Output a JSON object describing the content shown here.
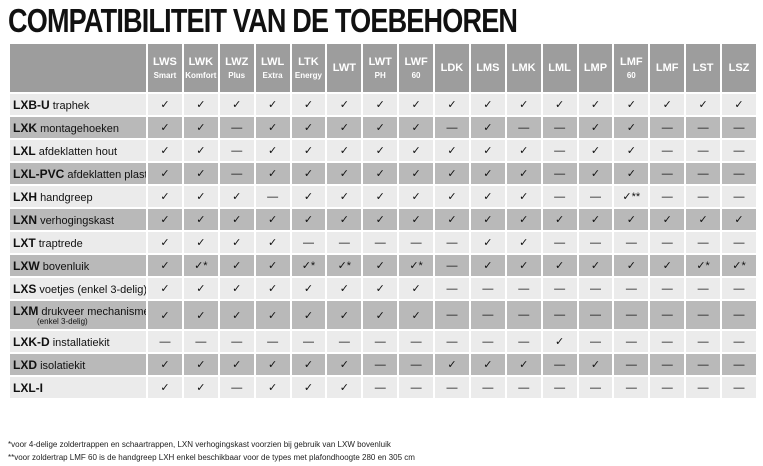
{
  "title": "COMPATIBILITEIT VAN DE TOEBEHOREN",
  "table": {
    "columns": [
      {
        "code": "LWS",
        "sub": "Smart"
      },
      {
        "code": "LWK",
        "sub": "Komfort"
      },
      {
        "code": "LWZ",
        "sub": "Plus"
      },
      {
        "code": "LWL",
        "sub": "Extra"
      },
      {
        "code": "LTK",
        "sub": "Energy"
      },
      {
        "code": "LWT"
      },
      {
        "code": "LWT",
        "sub": "PH"
      },
      {
        "code": "LWF",
        "sub": "60"
      },
      {
        "code": "LDK"
      },
      {
        "code": "LMS"
      },
      {
        "code": "LMK"
      },
      {
        "code": "LML"
      },
      {
        "code": "LMP"
      },
      {
        "code": "LMF",
        "sub": "60"
      },
      {
        "code": "LMF"
      },
      {
        "code": "LST"
      },
      {
        "code": "LSZ"
      }
    ],
    "rows": [
      {
        "code": "LXB-U",
        "desc": "traphek",
        "cells": [
          "✓",
          "✓",
          "✓",
          "✓",
          "✓",
          "✓",
          "✓",
          "✓",
          "✓",
          "✓",
          "✓",
          "✓",
          "✓",
          "✓",
          "✓",
          "✓",
          "✓"
        ]
      },
      {
        "code": "LXK",
        "desc": "montagehoeken",
        "cells": [
          "✓",
          "✓",
          "—",
          "✓",
          "✓",
          "✓",
          "✓",
          "✓",
          "—",
          "✓",
          "—",
          "—",
          "✓",
          "✓",
          "—",
          "—",
          "—"
        ]
      },
      {
        "code": "LXL",
        "desc": "afdeklatten hout",
        "cells": [
          "✓",
          "✓",
          "—",
          "✓",
          "✓",
          "✓",
          "✓",
          "✓",
          "✓",
          "✓",
          "✓",
          "—",
          "✓",
          "✓",
          "—",
          "—",
          "—"
        ]
      },
      {
        "code": "LXL-PVC",
        "desc": "afdeklatten plastic",
        "cells": [
          "✓",
          "✓",
          "—",
          "✓",
          "✓",
          "✓",
          "✓",
          "✓",
          "✓",
          "✓",
          "✓",
          "—",
          "✓",
          "✓",
          "—",
          "—",
          "—"
        ]
      },
      {
        "code": "LXH",
        "desc": "handgreep",
        "cells": [
          "✓",
          "✓",
          "✓",
          "—",
          "✓",
          "✓",
          "✓",
          "✓",
          "✓",
          "✓",
          "✓",
          "—",
          "—",
          "✓**",
          "—",
          "—",
          "—"
        ]
      },
      {
        "code": "LXN",
        "desc": "verhogingskast",
        "cells": [
          "✓",
          "✓",
          "✓",
          "✓",
          "✓",
          "✓",
          "✓",
          "✓",
          "✓",
          "✓",
          "✓",
          "✓",
          "✓",
          "✓",
          "✓",
          "✓",
          "✓"
        ]
      },
      {
        "code": "LXT",
        "desc": "traptrede",
        "cells": [
          "✓",
          "✓",
          "✓",
          "✓",
          "—",
          "—",
          "—",
          "—",
          "—",
          "✓",
          "✓",
          "—",
          "—",
          "—",
          "—",
          "—",
          "—"
        ]
      },
      {
        "code": "LXW",
        "desc": "bovenluik",
        "cells": [
          "✓",
          "✓*",
          "✓",
          "✓",
          "✓*",
          "✓*",
          "✓",
          "✓*",
          "—",
          "✓",
          "✓",
          "✓",
          "✓",
          "✓",
          "✓",
          "✓*",
          "✓*"
        ]
      },
      {
        "code": "LXS",
        "desc": "voetjes (enkel 3-delig)",
        "cells": [
          "✓",
          "✓",
          "✓",
          "✓",
          "✓",
          "✓",
          "✓",
          "✓",
          "—",
          "—",
          "—",
          "—",
          "—",
          "—",
          "—",
          "—",
          "—"
        ]
      },
      {
        "code": "LXM",
        "desc": "drukveer mechanisme",
        "note": "(enkel 3-delig)",
        "cells": [
          "✓",
          "✓",
          "✓",
          "✓",
          "✓",
          "✓",
          "✓",
          "✓",
          "—",
          "—",
          "—",
          "—",
          "—",
          "—",
          "—",
          "—",
          "—"
        ]
      },
      {
        "code": "LXK-D",
        "desc": "installatiekit",
        "cells": [
          "—",
          "—",
          "—",
          "—",
          "—",
          "—",
          "—",
          "—",
          "—",
          "—",
          "—",
          "✓",
          "—",
          "—",
          "—",
          "—",
          "—"
        ]
      },
      {
        "code": "LXD",
        "desc": "isolatiekit",
        "cells": [
          "✓",
          "✓",
          "✓",
          "✓",
          "✓",
          "✓",
          "—",
          "—",
          "✓",
          "✓",
          "✓",
          "—",
          "✓",
          "—",
          "—",
          "—",
          "—"
        ]
      },
      {
        "code": "LXL-I",
        "desc": "",
        "cells": [
          "✓",
          "✓",
          "—",
          "✓",
          "✓",
          "✓",
          "—",
          "—",
          "—",
          "—",
          "—",
          "—",
          "—",
          "—",
          "—",
          "—",
          "—"
        ]
      }
    ]
  },
  "footnotes": [
    "*voor 4-delige zoldertrappen en schaartrappen, LXN verhogingskast voorzien bij gebruik van LXW bovenluik",
    "**voor zoldertrap LMF 60 is de handgreep LXH enkel beschikbaar voor de types met plafondhoogte 280 en 305 cm"
  ]
}
